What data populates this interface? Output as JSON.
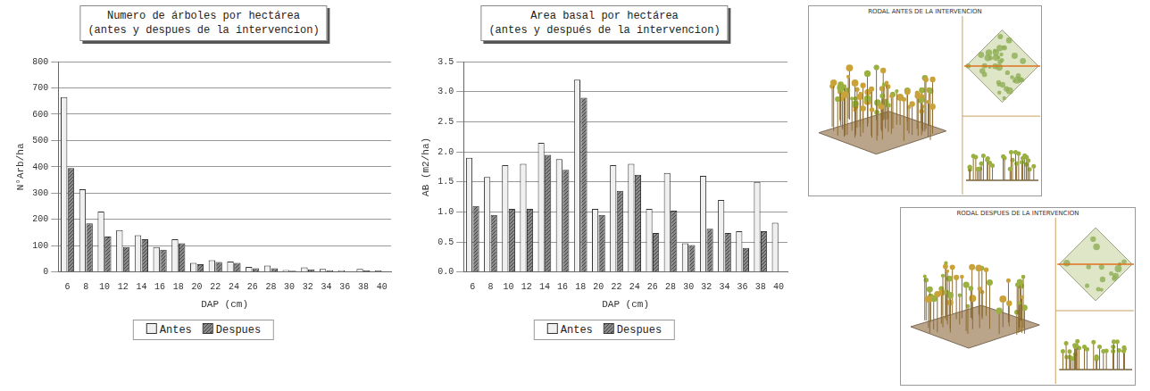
{
  "chart_data": [
    {
      "type": "bar",
      "title": [
        "Numero de árboles por hectárea",
        "(antes y despues de la intervencion)"
      ],
      "x_label": "DAP (cm)",
      "y_label": "N°Arb/ha",
      "categories": [
        6,
        8,
        10,
        12,
        14,
        16,
        18,
        20,
        22,
        24,
        26,
        28,
        30,
        32,
        34,
        36,
        38,
        40
      ],
      "series": [
        {
          "name": "Antes",
          "color": "#f0f0f0",
          "values": [
            665,
            315,
            230,
            160,
            140,
            95,
            125,
            35,
            45,
            40,
            20,
            25,
            8,
            18,
            12,
            7,
            12,
            6
          ]
        },
        {
          "name": "Despues",
          "color": "#8a8a8a",
          "values": [
            395,
            185,
            135,
            95,
            125,
            85,
            110,
            30,
            38,
            35,
            15,
            15,
            5,
            10,
            7,
            3,
            6,
            0
          ]
        }
      ],
      "ylim": [
        0,
        800
      ],
      "yticks": [
        0,
        100,
        200,
        300,
        400,
        500,
        600,
        700,
        800
      ],
      "grid": true,
      "legend": "bottom"
    },
    {
      "type": "bar",
      "title": [
        "Area basal por hectárea",
        "(antes y después de la intervencion)"
      ],
      "x_label": "DAP (cm)",
      "y_label": "AB (m2/ha)",
      "categories": [
        6,
        8,
        10,
        12,
        14,
        16,
        18,
        20,
        22,
        24,
        26,
        28,
        30,
        32,
        34,
        36,
        38,
        40
      ],
      "series": [
        {
          "name": "Antes",
          "color": "#f0f0f0",
          "values": [
            1.9,
            1.58,
            1.78,
            1.8,
            2.15,
            1.88,
            3.2,
            1.05,
            1.78,
            1.8,
            1.05,
            1.65,
            0.48,
            1.6,
            1.2,
            0.68,
            1.5,
            0.82
          ]
        },
        {
          "name": "Despues",
          "color": "#8a8a8a",
          "values": [
            1.1,
            0.95,
            1.05,
            1.05,
            1.95,
            1.7,
            2.9,
            0.95,
            1.35,
            1.62,
            0.65,
            1.02,
            0.45,
            0.72,
            0.65,
            0.4,
            0.68,
            null
          ]
        }
      ],
      "ylim": [
        0,
        3.5
      ],
      "yticks": [
        {
          "value": 0,
          "label": "0.0"
        },
        {
          "value": 0.5,
          "label": "0.5"
        },
        {
          "value": 1,
          "label": "1.0"
        },
        {
          "value": 1.5,
          "label": "1.5"
        },
        {
          "value": 2,
          "label": "2.0"
        },
        {
          "value": 2.5,
          "label": "2.5"
        },
        {
          "value": 3,
          "label": "3.0"
        },
        {
          "value": 3.5,
          "label": "3.5"
        }
      ],
      "grid": true,
      "legend": "bottom"
    }
  ],
  "panels": [
    {
      "title": "RODAL ANTES DE LA INTERVENCION"
    },
    {
      "title": "RODAL DESPUES DE LA INTERVENCION"
    }
  ]
}
